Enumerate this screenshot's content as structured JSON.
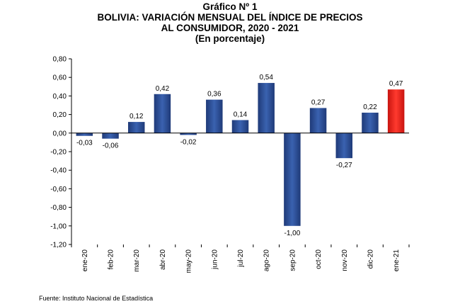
{
  "title": {
    "line1": "Gráfico Nº 1",
    "line2": "BOLIVIA: VARIACIÓN MENSUAL DEL ÍNDICE DE PRECIOS",
    "line3": "AL CONSUMIDOR, 2020 - 2021",
    "line4": "(En porcentaje)"
  },
  "source": "Fuente: Instituto Nacional de Estadística",
  "colors": {
    "bar": "#2d4f96",
    "bar_highlight": "#e8211b",
    "axis": "#000000"
  },
  "chart_data": {
    "type": "bar",
    "title": "BOLIVIA: VARIACIÓN MENSUAL DEL ÍNDICE DE PRECIOS AL CONSUMIDOR, 2020 - 2021",
    "xlabel": "",
    "ylabel": "",
    "ylim": [
      -1.2,
      0.8
    ],
    "yticks": [
      0.8,
      0.6,
      0.4,
      0.2,
      0.0,
      -0.2,
      -0.4,
      -0.6,
      -0.8,
      -1.0,
      -1.2
    ],
    "ytick_labels": [
      "0,80",
      "0,60",
      "0,40",
      "0,20",
      "0,00",
      "-0,20",
      "-0,40",
      "-0,60",
      "-0,80",
      "-1,00",
      "-1,20"
    ],
    "categories": [
      "ene-20",
      "feb-20",
      "mar-20",
      "abr-20",
      "may-20",
      "jun-20",
      "jul-20",
      "ago-20",
      "sep-20",
      "oct-20",
      "nov-20",
      "dic-20",
      "ene-21"
    ],
    "values": [
      -0.03,
      -0.06,
      0.12,
      0.42,
      -0.02,
      0.36,
      0.14,
      0.54,
      -1.0,
      0.27,
      -0.27,
      0.22,
      0.47
    ],
    "value_labels": [
      "-0,03",
      "-0,06",
      "0,12",
      "0,42",
      "-0,02",
      "0,36",
      "0,14",
      "0,54",
      "-1,00",
      "0,27",
      "-0,27",
      "0,22",
      "0,47"
    ],
    "highlight_index": 12,
    "grid": false,
    "legend": "none"
  }
}
